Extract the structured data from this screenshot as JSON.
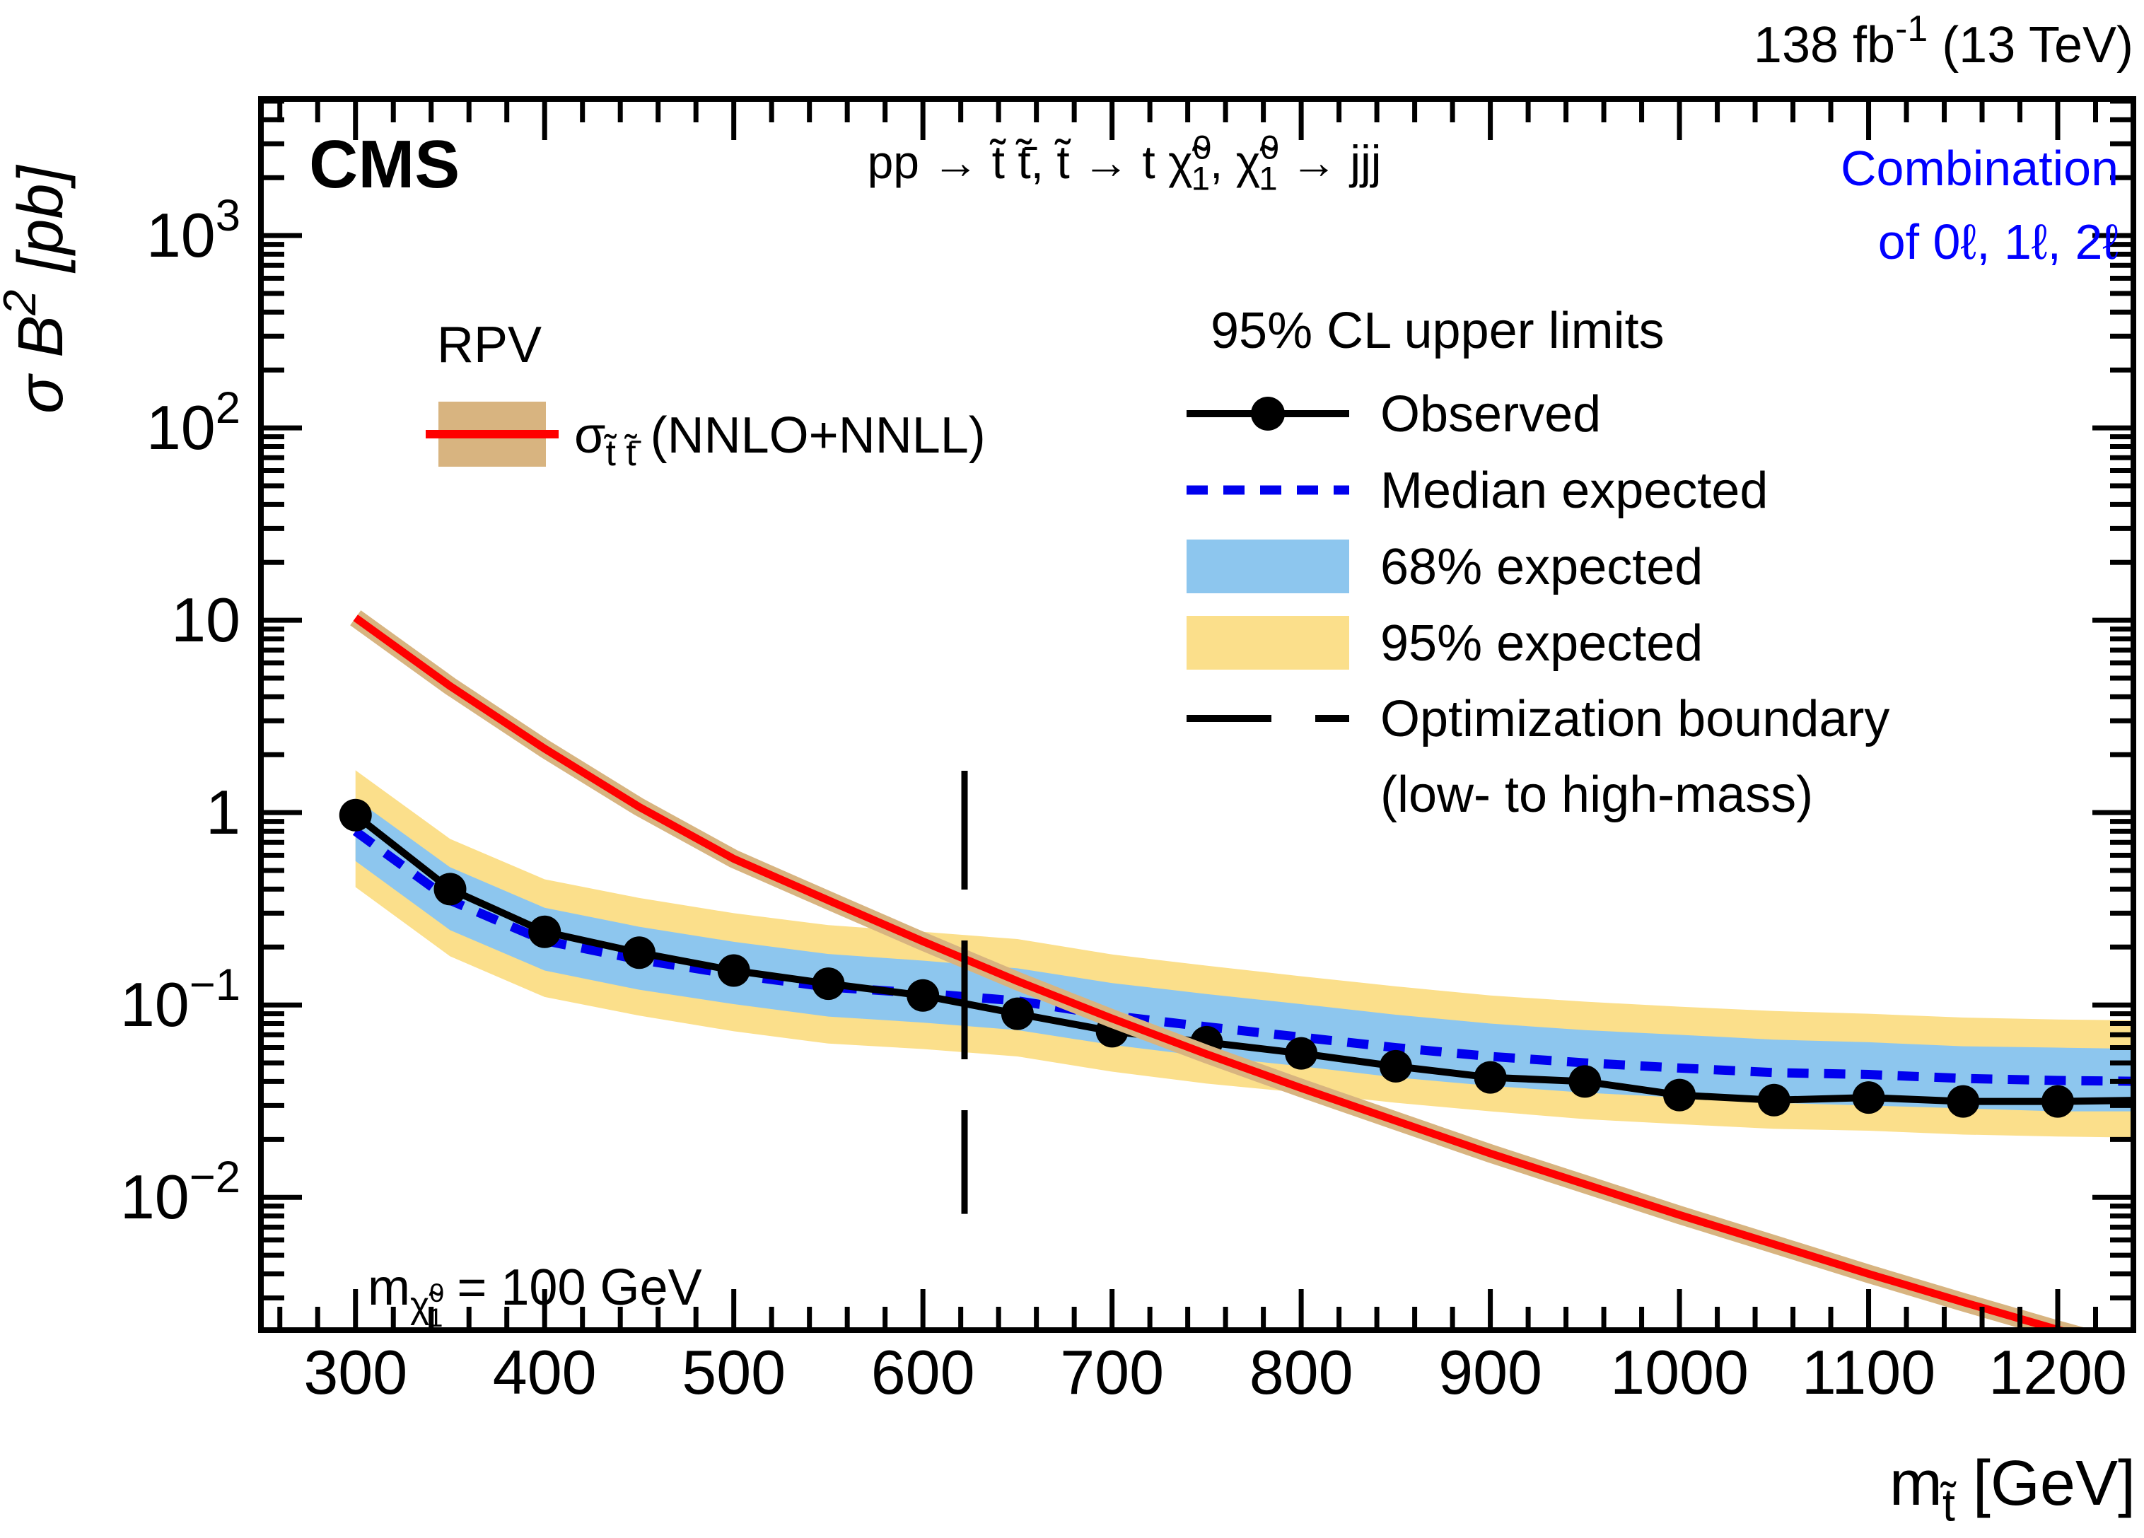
{
  "header": {
    "cms_label": "CMS",
    "lumi_label": "138 fb^{-1} (13 TeV)",
    "combination_lines": [
      "Combination",
      "of 0ℓ, 1ℓ, 2ℓ"
    ],
    "combination_color": "#0000ff"
  },
  "annotation": "m_{χ̃^{0}_{1}} = 100 GeV",
  "legend_left": {
    "title": "RPV",
    "entry_label": "σ_{t̃ t̃̄} (NNLO+NNLL)",
    "band_color": "#d8b480",
    "line_color": "#ff0000"
  },
  "legend_right": {
    "title": "95% CL upper limits",
    "entries": [
      {
        "label": "Observed",
        "type": "marker-line",
        "color": "#000000"
      },
      {
        "label": "Median expected",
        "type": "dashed-line",
        "color": "#0000ee"
      },
      {
        "label": "68% expected",
        "type": "band",
        "color": "#8dc6ee"
      },
      {
        "label": "95% expected",
        "type": "band",
        "color": "#fbdf8b"
      },
      {
        "label": "Optimization boundary",
        "label2": "(low- to high-mass)",
        "type": "long-dash",
        "color": "#000000"
      }
    ]
  },
  "chart_data": {
    "type": "line",
    "title": "pp → t̃ t̃̄, t̃ → t χ̃^{0}_{1}, χ̃^{0}_{1} → jjj",
    "xlabel": "m_{t̃} [GeV]",
    "ylabel": "σ B^{2} [pb]",
    "xlim": [
      250,
      1240
    ],
    "ylim": [
      0.00204,
      5128
    ],
    "x_ticks": [
      300,
      400,
      500,
      600,
      700,
      800,
      900,
      1000,
      1100,
      1200
    ],
    "x_minor_step": 20,
    "y_ticks": [
      {
        "v": 1000,
        "label": "10^{3}"
      },
      {
        "v": 100,
        "label": "10^{2}"
      },
      {
        "v": 10,
        "label": "10"
      },
      {
        "v": 1,
        "label": "1"
      },
      {
        "v": 0.1,
        "label": "10^{−1}"
      },
      {
        "v": 0.01,
        "label": "10^{−2}"
      }
    ],
    "grid": false,
    "legend_position": "upper right",
    "masses": [
      300,
      350,
      400,
      450,
      500,
      550,
      600,
      650,
      700,
      750,
      800,
      850,
      900,
      950,
      1000,
      1050,
      1100,
      1150,
      1200,
      1250
    ],
    "observed": [
      0.97,
      0.4,
      0.24,
      0.187,
      0.151,
      0.129,
      0.112,
      0.09,
      0.073,
      0.064,
      0.056,
      0.048,
      0.042,
      0.04,
      0.034,
      0.032,
      0.033,
      0.0315,
      0.0315,
      0.032
    ],
    "median_expected": [
      0.8,
      0.35,
      0.216,
      0.172,
      0.144,
      0.124,
      0.115,
      0.105,
      0.088,
      0.077,
      0.068,
      0.06,
      0.054,
      0.05,
      0.047,
      0.0445,
      0.0435,
      0.0415,
      0.0405,
      0.04
    ],
    "band68": {
      "hi": [
        1.18,
        0.52,
        0.32,
        0.255,
        0.213,
        0.184,
        0.17,
        0.155,
        0.13,
        0.114,
        0.101,
        0.089,
        0.08,
        0.074,
        0.07,
        0.066,
        0.064,
        0.061,
        0.06,
        0.059
      ],
      "lo": [
        0.56,
        0.245,
        0.151,
        0.12,
        0.101,
        0.087,
        0.081,
        0.074,
        0.062,
        0.054,
        0.048,
        0.042,
        0.038,
        0.035,
        0.033,
        0.031,
        0.03,
        0.029,
        0.028,
        0.028
      ]
    },
    "band95": {
      "hi": [
        1.66,
        0.73,
        0.45,
        0.36,
        0.3,
        0.26,
        0.24,
        0.22,
        0.183,
        0.16,
        0.141,
        0.125,
        0.112,
        0.104,
        0.098,
        0.093,
        0.09,
        0.086,
        0.084,
        0.083
      ],
      "lo": [
        0.41,
        0.179,
        0.11,
        0.088,
        0.073,
        0.063,
        0.059,
        0.054,
        0.045,
        0.039,
        0.035,
        0.031,
        0.028,
        0.0255,
        0.024,
        0.0227,
        0.0222,
        0.0212,
        0.0207,
        0.0204
      ]
    },
    "theory": {
      "values": [
        10.3,
        4.55,
        2.15,
        1.07,
        0.575,
        0.35,
        0.214,
        0.133,
        0.085,
        0.0555,
        0.037,
        0.025,
        0.0169,
        0.0117,
        0.0081,
        0.0057,
        0.004,
        0.00285,
        0.00205,
        0.0015
      ],
      "band_frac": 0.09
    },
    "boundary": {
      "x": 622,
      "y_top": 1.65,
      "y_bottom": 0.0082
    },
    "colors": {
      "observed": "#000000",
      "median": "#0000ee",
      "band68": "#8dc6ee",
      "band95": "#fbdf8b",
      "theory_line": "#ff0000",
      "theory_band": "#d8b480",
      "frame": "#000000"
    }
  }
}
